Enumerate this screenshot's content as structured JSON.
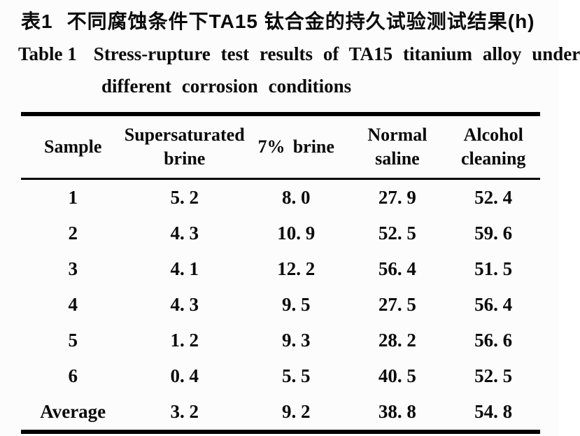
{
  "caption": {
    "zh_label": "表1",
    "zh_text": "不同腐蚀条件下TA15 钛合金的持久试验测试结果(h)",
    "en_label": "Table 1",
    "en_text_line1": "Stress-rupture test results of TA15 titanium alloy under",
    "en_text_line2": "different corrosion conditions"
  },
  "chart_data": {
    "type": "table",
    "title": "Stress-rupture test results of TA15 titanium alloy under different corrosion conditions (h)",
    "columns": [
      "Sample",
      "Supersaturated brine",
      "7% brine",
      "Normal saline",
      "Alcohol cleaning"
    ],
    "header": [
      {
        "line1": "Sample",
        "line2": ""
      },
      {
        "line1": "Supersaturated",
        "line2": "brine"
      },
      {
        "line1": "7% brine",
        "line2": ""
      },
      {
        "line1": "Normal",
        "line2": "saline"
      },
      {
        "line1": "Alcohol",
        "line2": "cleaning"
      }
    ],
    "rows": [
      {
        "sample": "1",
        "values": [
          "5. 2",
          "8. 0",
          "27. 9",
          "52. 4"
        ]
      },
      {
        "sample": "2",
        "values": [
          "4. 3",
          "10. 9",
          "52. 5",
          "59. 6"
        ]
      },
      {
        "sample": "3",
        "values": [
          "4. 1",
          "12. 2",
          "56. 4",
          "51. 5"
        ]
      },
      {
        "sample": "4",
        "values": [
          "4. 3",
          "9. 5",
          "27. 5",
          "56. 4"
        ]
      },
      {
        "sample": "5",
        "values": [
          "1. 2",
          "9. 3",
          "28. 2",
          "56. 6"
        ]
      },
      {
        "sample": "6",
        "values": [
          "0. 4",
          "5. 5",
          "40. 5",
          "52. 5"
        ]
      },
      {
        "sample": "Average",
        "values": [
          "3. 2",
          "9. 2",
          "38. 8",
          "54. 8"
        ]
      }
    ]
  },
  "colors": {
    "text": "#0a0a0a",
    "background": "#fcfcfc",
    "rule": "#000000"
  }
}
